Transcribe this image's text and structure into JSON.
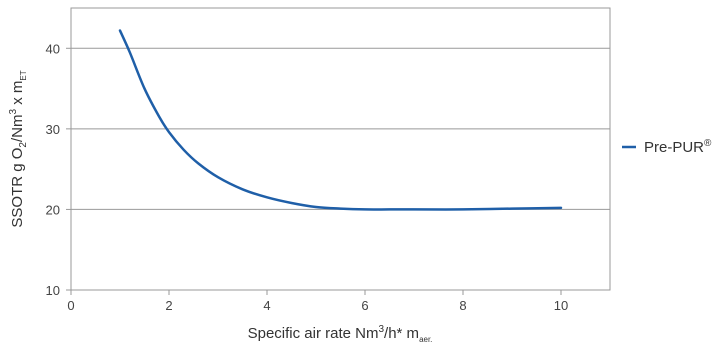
{
  "chart_data": {
    "type": "line",
    "title": "",
    "xlabel": {
      "main": "Specific air rate Nm",
      "sup": "3",
      "mid": "/h",
      "star": "*",
      "unit": " m",
      "sub": "aer."
    },
    "ylabel": {
      "p1": "SSOTR g O",
      "s1": "2",
      "p2": "/Nm",
      "sup": "3",
      "p3": " x m",
      "s2": "ET"
    },
    "x_ticks": [
      "0",
      "2",
      "4",
      "6",
      "8",
      "10"
    ],
    "y_ticks": [
      "10",
      "20",
      "30",
      "40"
    ],
    "xlim": [
      0,
      11
    ],
    "ylim": [
      10,
      45
    ],
    "grid": "horizontal",
    "legend_position": "right",
    "series": [
      {
        "name": "Pre-PUR",
        "name_mark": "®",
        "color": "#1f5fa8",
        "x": [
          1.0,
          1.2,
          1.5,
          1.8,
          2.0,
          2.3,
          2.6,
          3.0,
          3.5,
          4.0,
          4.5,
          5.0,
          5.5,
          6.0,
          6.5,
          7.0,
          8.0,
          9.0,
          10.0
        ],
        "y": [
          42.2,
          39.5,
          35.0,
          31.5,
          29.6,
          27.4,
          25.7,
          24.0,
          22.5,
          21.5,
          20.8,
          20.3,
          20.1,
          20.0,
          20.0,
          20.0,
          20.0,
          20.1,
          20.2
        ]
      }
    ]
  }
}
